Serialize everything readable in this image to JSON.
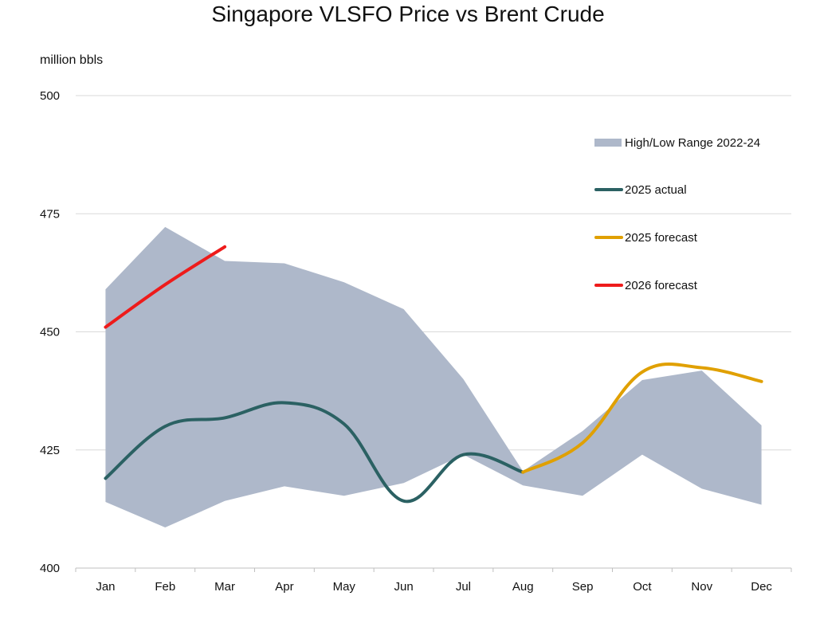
{
  "chart_data": {
    "type": "line",
    "title": "Singapore VLSFO Price vs Brent Crude",
    "ylabel": "million bbls",
    "ylim": [
      400,
      500
    ],
    "yticks": [
      400,
      425,
      450,
      475,
      500
    ],
    "categories": [
      "Jan",
      "Feb",
      "Mar",
      "Apr",
      "May",
      "Jun",
      "Jul",
      "Aug",
      "Sep",
      "Oct",
      "Nov",
      "Dec"
    ],
    "grid": true,
    "legend_position": "top-right",
    "range_band": {
      "name": "High/Low Range 2022-24",
      "color": "#aeb8ca",
      "high": [
        459,
        472.2,
        465,
        464.5,
        460.5,
        454.8,
        440,
        420.5,
        429,
        439.8,
        441.8,
        430.2
      ],
      "low": [
        414,
        408.6,
        414.2,
        417.3,
        415.3,
        418,
        424,
        417.5,
        415.3,
        424,
        416.8,
        413.4
      ]
    },
    "series": [
      {
        "name": "2025 actual",
        "color": "#2b6163",
        "x": [
          "Jan",
          "Feb",
          "Mar",
          "Apr",
          "May",
          "Jun",
          "Jul",
          "Aug"
        ],
        "values": [
          419,
          430,
          431.8,
          435,
          430.5,
          414.2,
          424,
          420.3
        ]
      },
      {
        "name": "2025 forecast",
        "color": "#e0a000",
        "x": [
          "Aug",
          "Sep",
          "Oct",
          "Nov",
          "Dec"
        ],
        "values": [
          420.3,
          426.5,
          441.5,
          442.4,
          439.5
        ]
      },
      {
        "name": "2026 forecast",
        "color": "#ee1b1b",
        "x": [
          "Jan",
          "Feb",
          "Mar"
        ],
        "values": [
          451,
          460,
          468
        ]
      }
    ]
  }
}
